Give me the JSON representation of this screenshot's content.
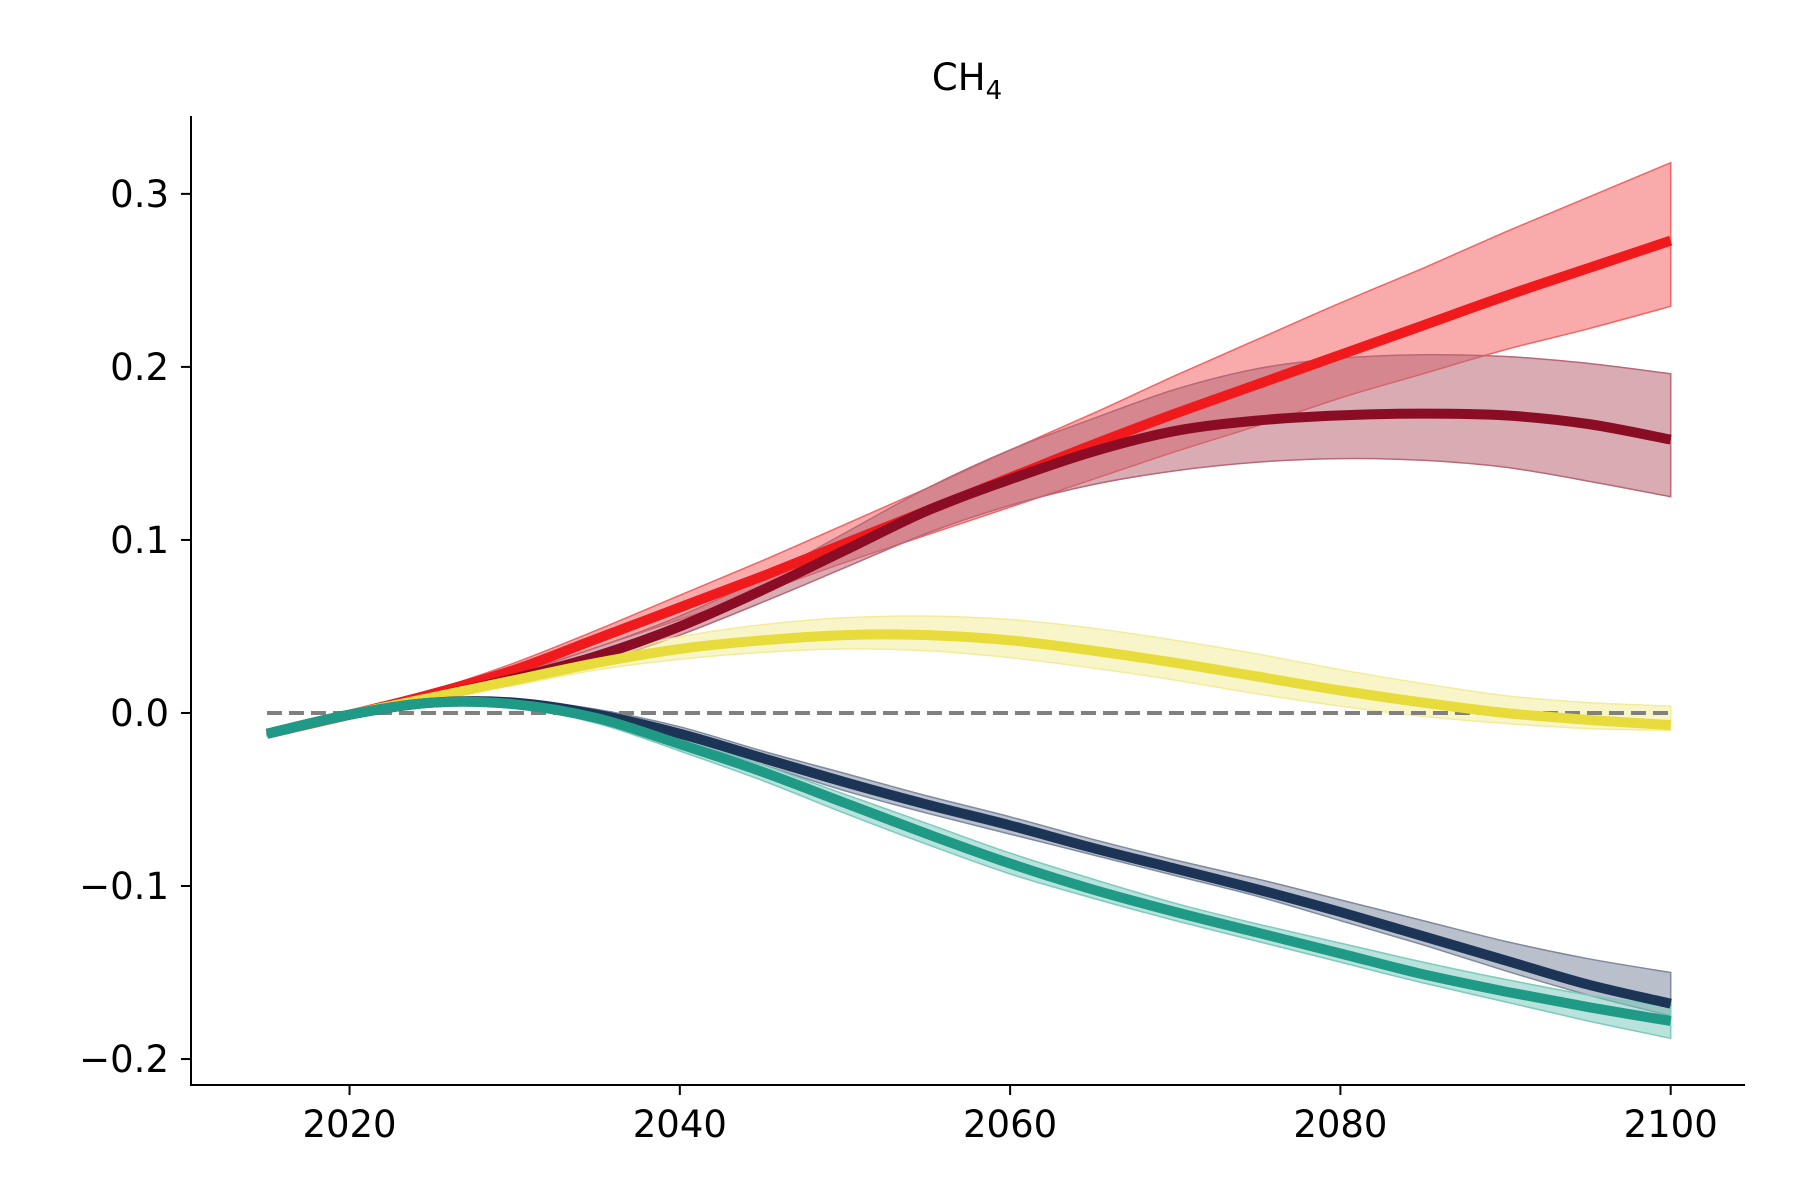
{
  "chart_data": {
    "type": "line",
    "title": "CH",
    "title_subscript": "4",
    "xlabel": "",
    "ylabel": "",
    "xlim": [
      2010.4,
      2104.5
    ],
    "ylim": [
      -0.215,
      0.345
    ],
    "xticks": [
      2020,
      2040,
      2060,
      2080,
      2100
    ],
    "xtick_labels": [
      "2020",
      "2040",
      "2060",
      "2080",
      "2100"
    ],
    "yticks": [
      -0.2,
      -0.1,
      0.0,
      0.1,
      0.2,
      0.3
    ],
    "ytick_labels": [
      "−0.2",
      "−0.1",
      "0.0",
      "0.1",
      "0.2",
      "0.3"
    ],
    "grid": false,
    "reference_line": {
      "y": 0.0,
      "style": "dashed",
      "color": "#808080"
    },
    "x": [
      2015,
      2020,
      2025,
      2030,
      2035,
      2040,
      2045,
      2050,
      2055,
      2060,
      2065,
      2070,
      2075,
      2080,
      2085,
      2090,
      2095,
      2100
    ],
    "series": [
      {
        "color": "#f0191c",
        "band_color": "#f46464",
        "values": [
          -0.012,
          -0.001,
          0.011,
          0.025,
          0.043,
          0.061,
          0.079,
          0.098,
          0.117,
          0.136,
          0.155,
          0.173,
          0.19,
          0.207,
          0.224,
          0.241,
          0.257,
          0.273
        ],
        "lower": [
          -0.013,
          -0.001,
          0.009,
          0.022,
          0.038,
          0.054,
          0.07,
          0.087,
          0.103,
          0.119,
          0.135,
          0.151,
          0.166,
          0.182,
          0.196,
          0.21,
          0.222,
          0.235
        ],
        "upper": [
          -0.011,
          0.0,
          0.013,
          0.029,
          0.048,
          0.068,
          0.088,
          0.109,
          0.13,
          0.152,
          0.173,
          0.195,
          0.216,
          0.237,
          0.257,
          0.278,
          0.298,
          0.318
        ]
      },
      {
        "color": "#8b0c25",
        "band_color": "#b96876",
        "values": [
          -0.012,
          -0.001,
          0.009,
          0.02,
          0.033,
          0.05,
          0.071,
          0.094,
          0.117,
          0.135,
          0.151,
          0.163,
          0.169,
          0.172,
          0.173,
          0.172,
          0.167,
          0.158
        ],
        "lower": [
          -0.013,
          -0.001,
          0.008,
          0.018,
          0.029,
          0.045,
          0.064,
          0.084,
          0.104,
          0.12,
          0.132,
          0.14,
          0.145,
          0.147,
          0.146,
          0.142,
          0.134,
          0.125
        ],
        "upper": [
          -0.011,
          0.0,
          0.011,
          0.023,
          0.038,
          0.056,
          0.078,
          0.104,
          0.13,
          0.152,
          0.17,
          0.187,
          0.199,
          0.205,
          0.207,
          0.206,
          0.202,
          0.196
        ]
      },
      {
        "color": "#e8dc3c",
        "band_color": "#f3ec9c",
        "values": [
          -0.012,
          -0.001,
          0.009,
          0.019,
          0.029,
          0.037,
          0.042,
          0.045,
          0.045,
          0.042,
          0.036,
          0.029,
          0.021,
          0.013,
          0.006,
          0.0,
          -0.004,
          -0.007
        ],
        "lower": [
          -0.013,
          -0.001,
          0.008,
          0.016,
          0.025,
          0.031,
          0.035,
          0.037,
          0.036,
          0.032,
          0.026,
          0.019,
          0.011,
          0.004,
          -0.002,
          -0.006,
          -0.009,
          -0.01
        ],
        "upper": [
          -0.011,
          0.0,
          0.011,
          0.022,
          0.033,
          0.044,
          0.051,
          0.055,
          0.056,
          0.054,
          0.049,
          0.042,
          0.034,
          0.025,
          0.017,
          0.01,
          0.006,
          0.004
        ]
      },
      {
        "color": "#1c3456",
        "band_color": "#7f8aa0",
        "values": [
          -0.012,
          -0.001,
          0.006,
          0.006,
          -0.001,
          -0.012,
          -0.026,
          -0.04,
          -0.053,
          -0.065,
          -0.078,
          -0.09,
          -0.102,
          -0.115,
          -0.129,
          -0.143,
          -0.157,
          -0.168
        ],
        "lower": [
          -0.013,
          -0.002,
          0.005,
          0.004,
          -0.004,
          -0.016,
          -0.03,
          -0.045,
          -0.058,
          -0.07,
          -0.082,
          -0.094,
          -0.106,
          -0.12,
          -0.134,
          -0.149,
          -0.163,
          -0.175
        ],
        "upper": [
          -0.011,
          0.0,
          0.007,
          0.008,
          0.002,
          -0.008,
          -0.022,
          -0.035,
          -0.048,
          -0.06,
          -0.073,
          -0.085,
          -0.096,
          -0.108,
          -0.12,
          -0.132,
          -0.142,
          -0.15
        ]
      },
      {
        "color": "#1e9a86",
        "band_color": "#7ecbbd",
        "values": [
          -0.012,
          -0.001,
          0.006,
          0.005,
          -0.003,
          -0.018,
          -0.034,
          -0.052,
          -0.07,
          -0.087,
          -0.102,
          -0.115,
          -0.127,
          -0.139,
          -0.151,
          -0.161,
          -0.17,
          -0.178
        ],
        "lower": [
          -0.013,
          -0.002,
          0.005,
          0.003,
          -0.006,
          -0.022,
          -0.039,
          -0.058,
          -0.076,
          -0.093,
          -0.107,
          -0.12,
          -0.132,
          -0.144,
          -0.156,
          -0.167,
          -0.178,
          -0.188
        ],
        "upper": [
          -0.011,
          0.0,
          0.007,
          0.007,
          0.0,
          -0.014,
          -0.03,
          -0.047,
          -0.064,
          -0.081,
          -0.096,
          -0.11,
          -0.122,
          -0.133,
          -0.144,
          -0.154,
          -0.163,
          -0.17
        ]
      }
    ]
  }
}
